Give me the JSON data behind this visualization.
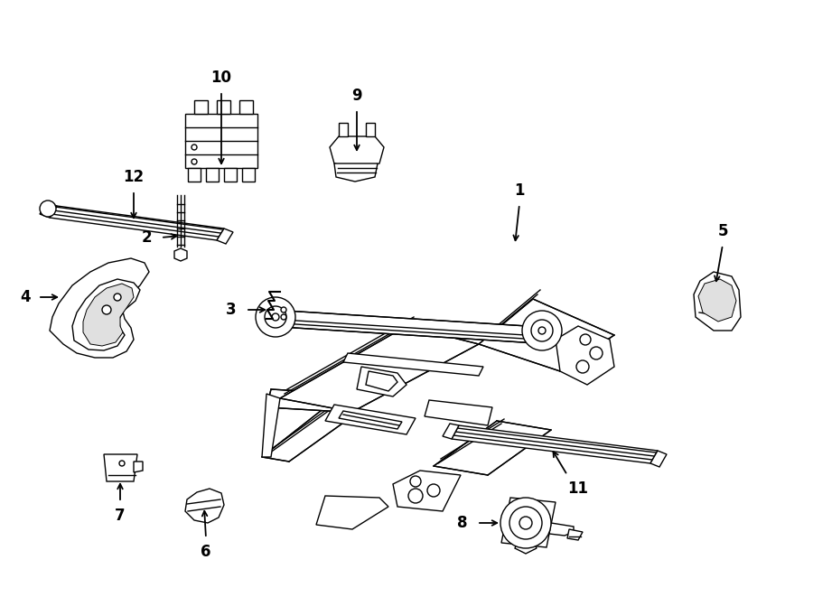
{
  "bg_color": "#ffffff",
  "line_color": "#000000",
  "lw": 1.0,
  "fig_width": 9.0,
  "fig_height": 6.61,
  "dpi": 100
}
